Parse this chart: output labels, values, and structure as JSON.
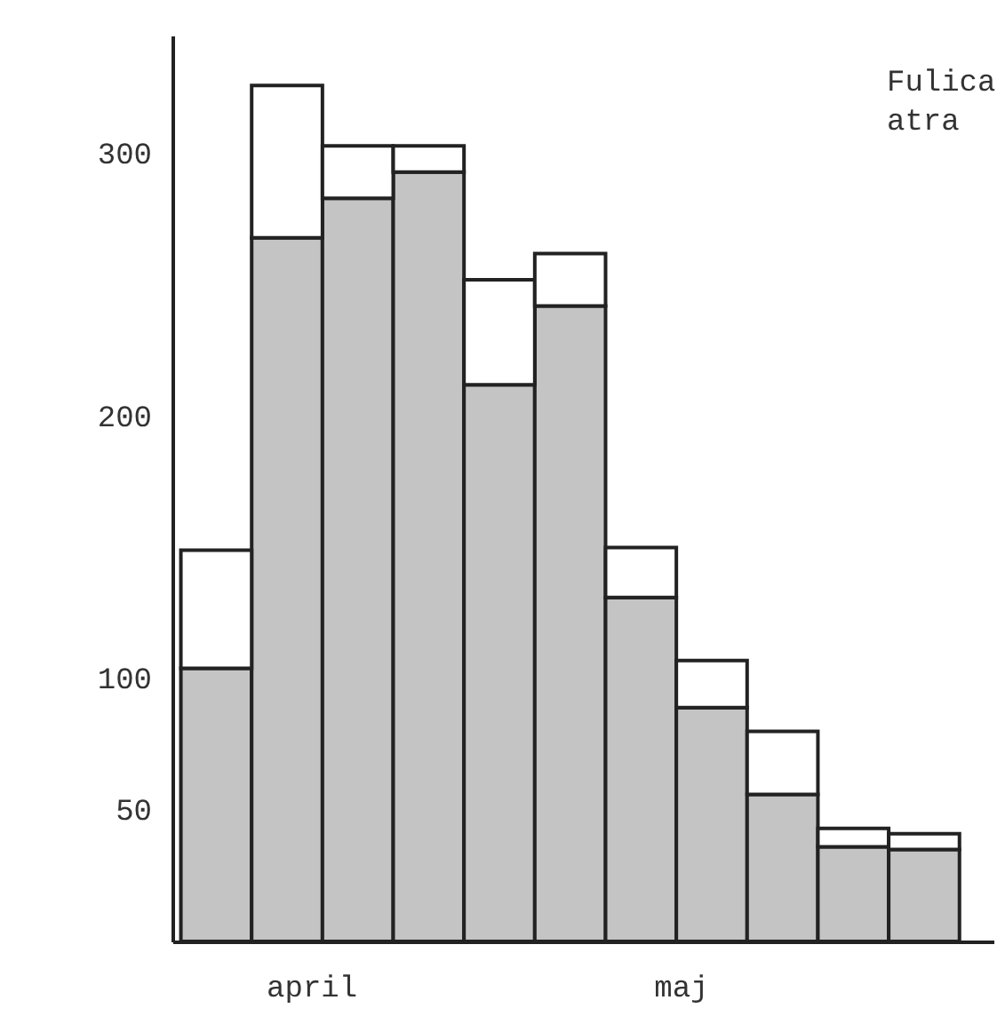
{
  "chart_data": {
    "type": "bar",
    "title": "Fulica atra",
    "stacked": true,
    "categories": [
      null,
      null,
      null,
      null,
      null,
      null,
      null,
      null,
      null,
      null,
      null
    ],
    "series": [
      {
        "color": "#c4c4c4",
        "values": [
          104,
          268,
          283,
          293,
          212,
          242,
          131,
          89,
          56,
          36,
          35
        ]
      },
      {
        "color": "#ffffff",
        "values": [
          45,
          58,
          20,
          10,
          40,
          20,
          19,
          18,
          24,
          7,
          6
        ]
      }
    ],
    "ylim": [
      0,
      345
    ],
    "yticks": [
      50,
      100,
      200,
      300
    ],
    "grid": false,
    "tick_labels": "y",
    "annotations": [
      "april",
      "maj"
    ]
  }
}
